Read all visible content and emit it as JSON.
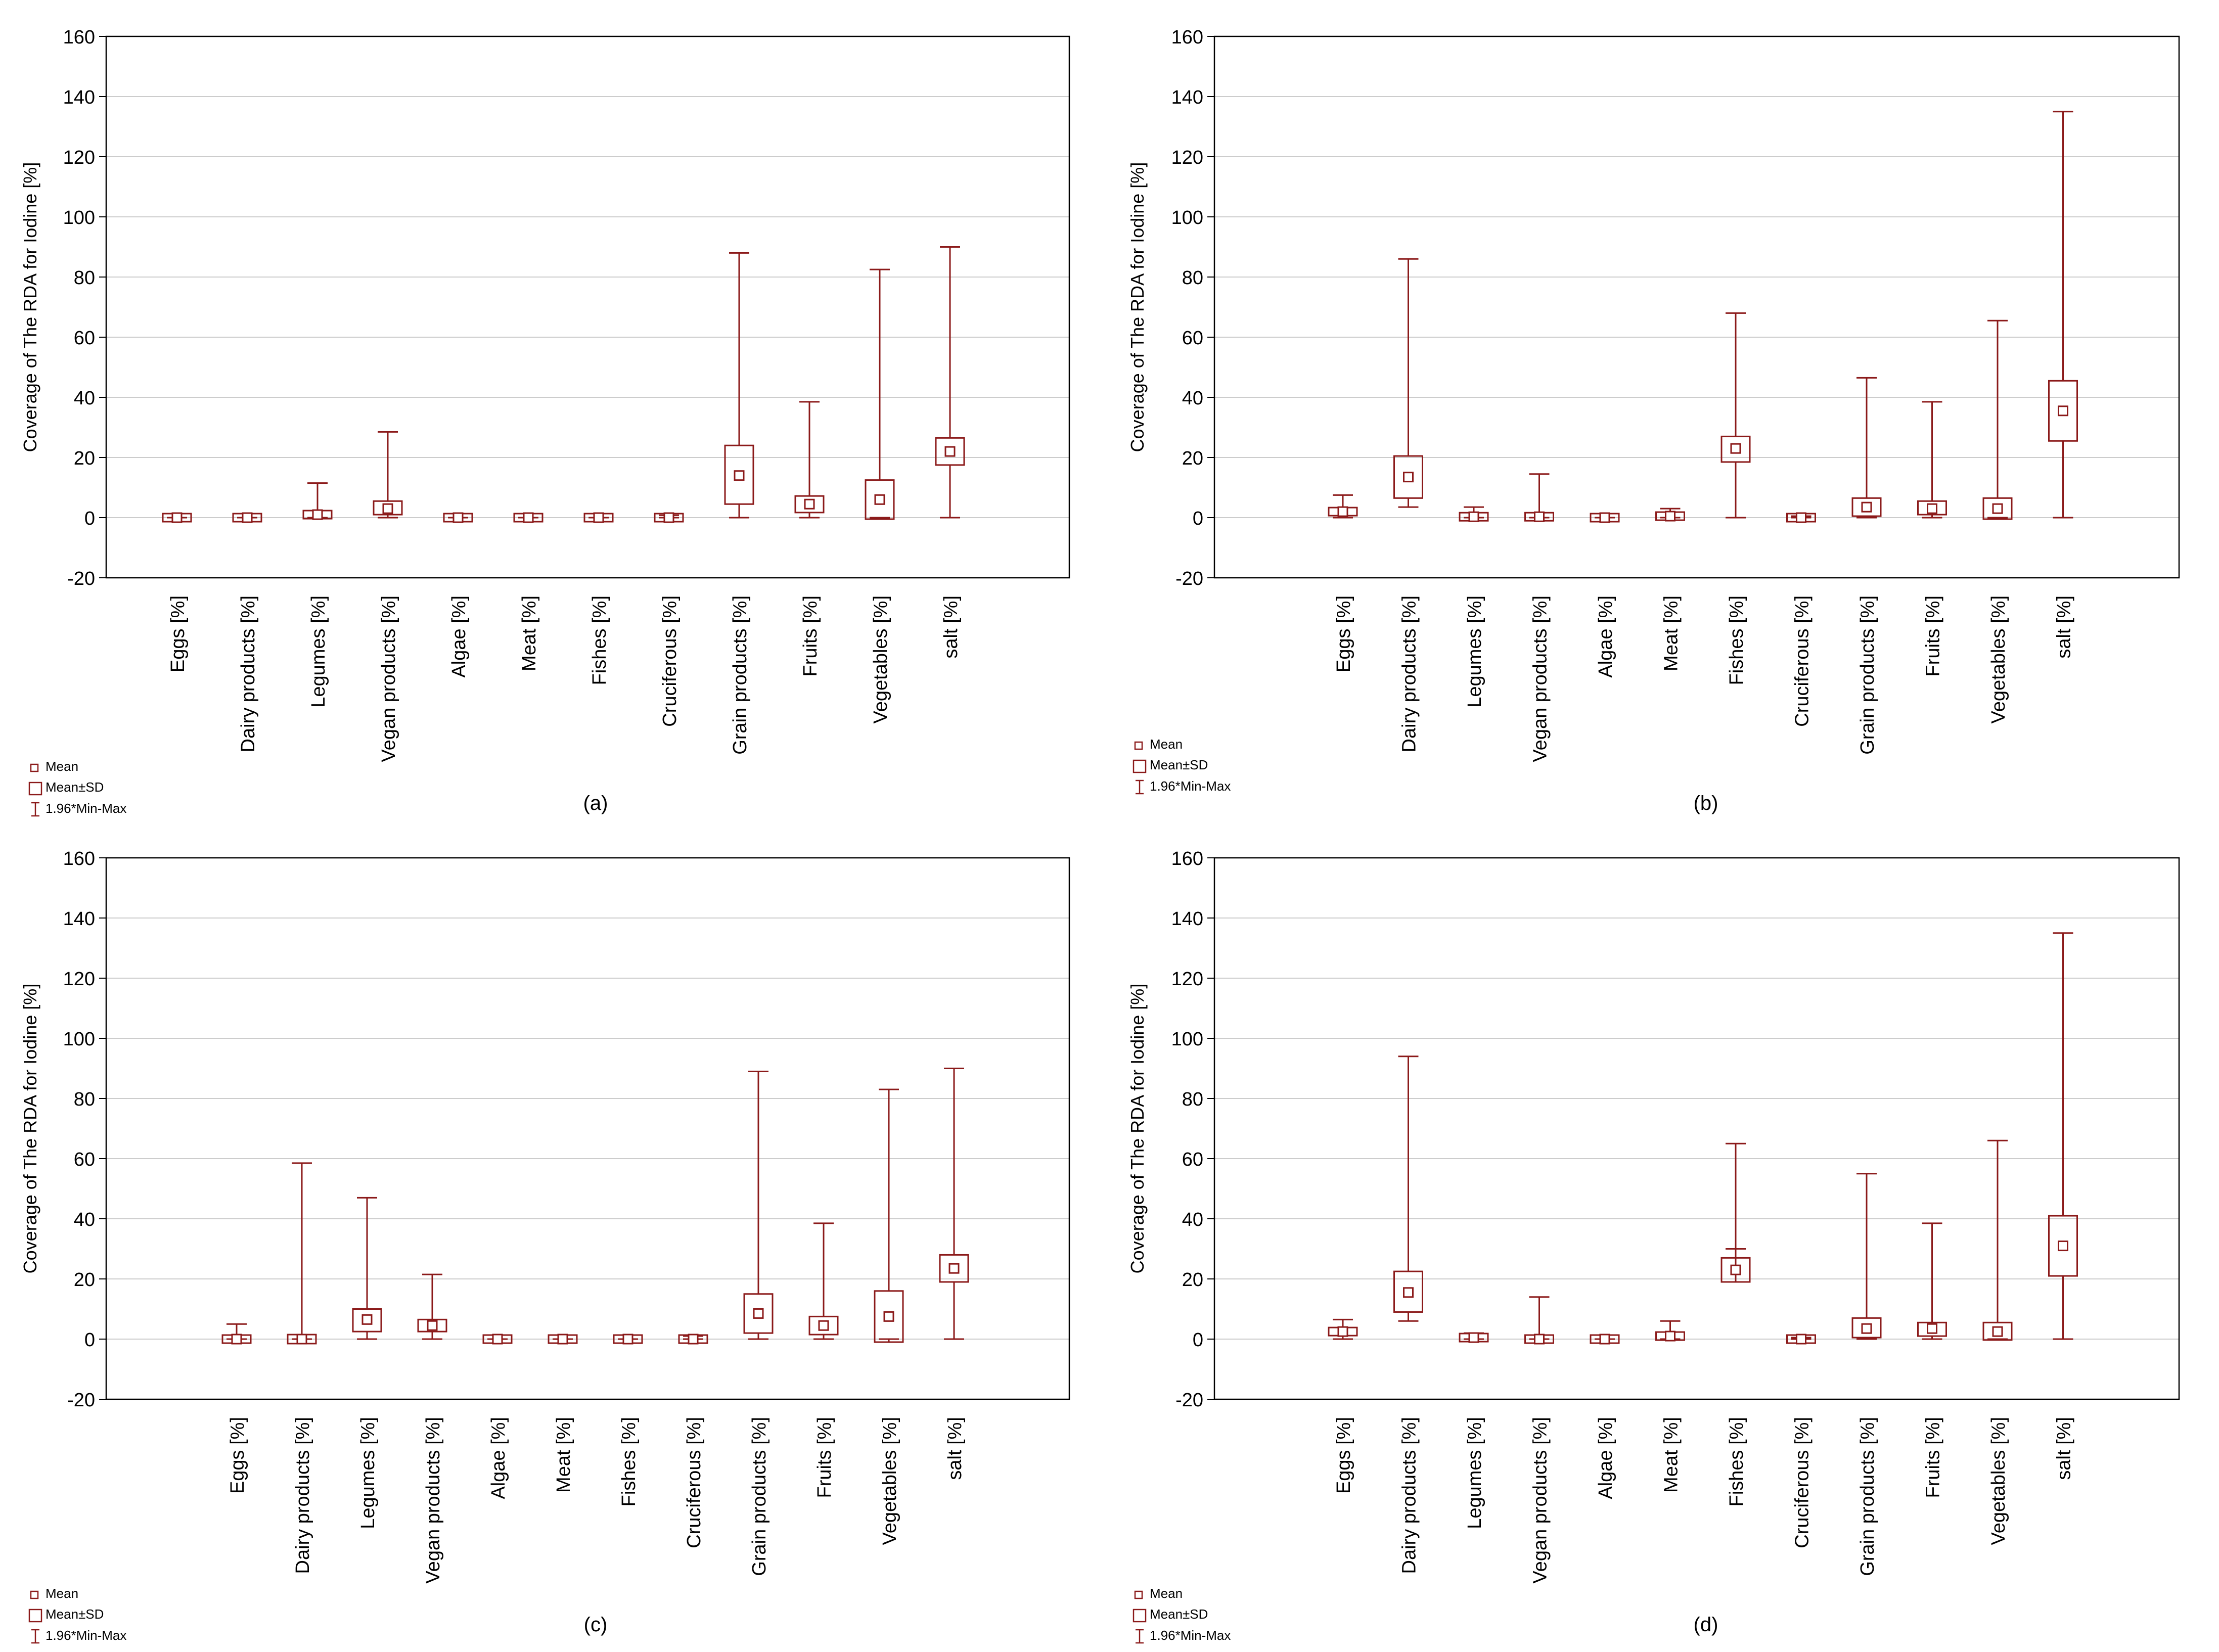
{
  "colors": {
    "series": "#8b1a1a",
    "grid": "#cccccc",
    "axis": "#000000"
  },
  "legend_items": [
    "Mean",
    "Mean±SD",
    "1.96*Min-Max"
  ],
  "chart_data": [
    {
      "panel_label": "(a)",
      "type": "box",
      "ylabel": "Coverage of The RDA for Iodine [%]",
      "ylim": [
        -20,
        160
      ],
      "yticks": [
        -20,
        0,
        20,
        40,
        60,
        80,
        100,
        120,
        140,
        160
      ],
      "grid": true,
      "legend_position": "bottom-left",
      "legend": [
        "Mean",
        "Mean±SD",
        "1.96*Min-Max"
      ],
      "categories": [
        "Eggs [%]",
        "Dairy products [%]",
        "Legumes [%]",
        "Vegan products [%]",
        "Algae [%]",
        "Meat [%]",
        "Fishes [%]",
        "Cruciferous [%]",
        "Grain products [%]",
        "Fruits [%]",
        "Vegetables [%]",
        "salt [%]"
      ],
      "mean": [
        0,
        0,
        1.0,
        3.0,
        0,
        0,
        0,
        0,
        14.0,
        4.5,
        6.0,
        22.0
      ],
      "sd_low": [
        0,
        0,
        0.3,
        1.0,
        0,
        0,
        0,
        -0.4,
        4.5,
        1.7,
        -0.5,
        17.5
      ],
      "sd_high": [
        0,
        0,
        1.7,
        5.5,
        0,
        0,
        0,
        0.4,
        24.0,
        7.2,
        12.5,
        26.5
      ],
      "whisker_low": [
        0,
        0,
        0,
        0,
        0,
        0,
        0,
        0,
        0,
        0,
        0,
        0
      ],
      "whisker_high": [
        0,
        0,
        11.5,
        28.5,
        0,
        0,
        0,
        0.8,
        88.0,
        38.5,
        82.5,
        90.0
      ]
    },
    {
      "panel_label": "(b)",
      "type": "box",
      "ylabel": "Coverage of The RDA for Iodine [%]",
      "ylim": [
        -20,
        160
      ],
      "yticks": [
        -20,
        0,
        20,
        40,
        60,
        80,
        100,
        120,
        140,
        160
      ],
      "grid": true,
      "legend_position": "bottom-left",
      "legend": [
        "Mean",
        "Mean±SD",
        "1.96*Min-Max"
      ],
      "categories": [
        "Eggs [%]",
        "Dairy products [%]",
        "Legumes [%]",
        "Vegan products [%]",
        "Algae [%]",
        "Meat [%]",
        "Fishes [%]",
        "Cruciferous [%]",
        "Grain products [%]",
        "Fruits [%]",
        "Vegetables [%]",
        "salt [%]"
      ],
      "mean": [
        2.0,
        13.5,
        0.3,
        0.3,
        0,
        0.5,
        23.0,
        0,
        3.5,
        3.0,
        3.0,
        35.5
      ],
      "sd_low": [
        1.2,
        6.5,
        -0.3,
        -0.7,
        0,
        -0.2,
        18.5,
        0,
        0.5,
        1.0,
        -0.5,
        25.5
      ],
      "sd_high": [
        2.8,
        20.5,
        0.9,
        1.3,
        0,
        1.2,
        27.0,
        0,
        6.5,
        5.5,
        6.5,
        45.5
      ],
      "whisker_low": [
        0,
        3.5,
        0,
        0,
        0,
        0,
        0,
        0,
        0,
        0,
        0,
        0
      ],
      "whisker_high": [
        7.5,
        86.0,
        3.5,
        14.5,
        0,
        3.0,
        68.0,
        0.5,
        46.5,
        38.5,
        65.5,
        135.0
      ]
    },
    {
      "panel_label": "(c)",
      "type": "box",
      "ylabel": "Coverage of The RDA for Iodine [%]",
      "ylim": [
        -20,
        160
      ],
      "yticks": [
        -20,
        0,
        20,
        40,
        60,
        80,
        100,
        120,
        140,
        160
      ],
      "grid": true,
      "legend_position": "bottom-left",
      "legend": [
        "Mean",
        "Mean±SD",
        "1.96*Min-Max"
      ],
      "categories": [
        "Eggs [%]",
        "Dairy products [%]",
        "Legumes [%]",
        "Vegan products [%]",
        "Algae [%]",
        "Meat [%]",
        "Fishes [%]",
        "Cruciferous [%]",
        "Grain products [%]",
        "Fruits [%]",
        "Vegetables [%]",
        "salt [%]"
      ],
      "mean": [
        0,
        0,
        6.5,
        4.5,
        0,
        0,
        0,
        0,
        8.5,
        4.5,
        7.5,
        23.5
      ],
      "sd_low": [
        -0.6,
        -1.5,
        2.5,
        2.5,
        0,
        0,
        0,
        -0.5,
        2.0,
        1.5,
        -1.0,
        19.0
      ],
      "sd_high": [
        0.6,
        1.5,
        10.0,
        6.5,
        0,
        0,
        0,
        0.5,
        15.0,
        7.5,
        16.0,
        28.0
      ],
      "whisker_low": [
        0,
        0,
        0,
        0,
        0,
        0,
        0,
        0,
        0,
        0,
        0,
        0
      ],
      "whisker_high": [
        5.0,
        58.5,
        47.0,
        21.5,
        0,
        0,
        0,
        1.0,
        89.0,
        38.5,
        83.0,
        90.0
      ]
    },
    {
      "panel_label": "(d)",
      "type": "box",
      "ylabel": "Coverage of The RDA for Iodine [%]",
      "ylim": [
        -20,
        160
      ],
      "yticks": [
        -20,
        0,
        20,
        40,
        60,
        80,
        100,
        120,
        140,
        160
      ],
      "grid": true,
      "legend_position": "bottom-left",
      "legend": [
        "Mean",
        "Mean±SD",
        "1.96*Min-Max"
      ],
      "categories": [
        "Eggs [%]",
        "Dairy products [%]",
        "Legumes [%]",
        "Vegan products [%]",
        "Algae [%]",
        "Meat [%]",
        "Fishes [%]",
        "Cruciferous [%]",
        "Grain products [%]",
        "Fruits [%]",
        "Vegetables [%]",
        "salt [%]"
      ],
      "mean": [
        2.5,
        15.5,
        0.5,
        0,
        0,
        1.0,
        23.0,
        0,
        3.5,
        3.5,
        2.5,
        31.0
      ],
      "sd_low": [
        1.5,
        9.0,
        -0.5,
        -0.8,
        0,
        0.3,
        19.0,
        0,
        0.5,
        1.0,
        -0.3,
        21.0
      ],
      "sd_high": [
        3.5,
        22.5,
        1.5,
        0.8,
        0,
        1.7,
        27.0,
        0,
        7.0,
        5.5,
        5.5,
        41.0
      ],
      "whisker_low": [
        0,
        6.0,
        0,
        0,
        0,
        0,
        30.0,
        0,
        0,
        0,
        0,
        0
      ],
      "whisker_high": [
        6.5,
        94.0,
        2.0,
        14.0,
        0,
        6.0,
        65.0,
        0.5,
        55.0,
        38.5,
        66.0,
        135.0
      ]
    }
  ]
}
